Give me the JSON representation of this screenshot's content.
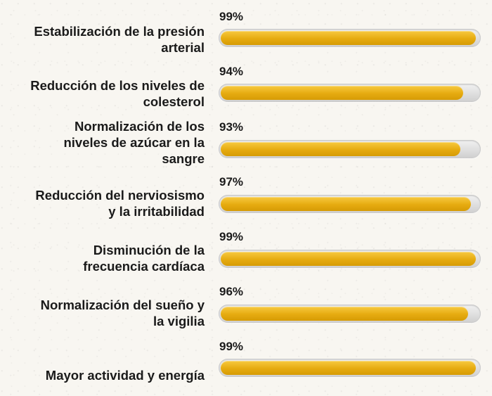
{
  "chart_data": {
    "type": "bar",
    "orientation": "horizontal",
    "categories": [
      "Estabilización de la presión arterial",
      "Reducción de los niveles de colesterol",
      "Normalización de los niveles de azúcar en la sangre",
      "Reducción del nerviosismo y la irritabilidad",
      "Disminución de la frecuencia cardíaca",
      "Normalización del sueño y la vigilia",
      "Mayor actividad y energía"
    ],
    "values": [
      99,
      94,
      93,
      97,
      99,
      96,
      99
    ],
    "value_labels": [
      "99%",
      "94%",
      "93%",
      "97%",
      "99%",
      "96%",
      "99%"
    ],
    "xlim": [
      0,
      100
    ],
    "colors": {
      "fill": "#e8b01a",
      "track": "#d9d9d9",
      "text": "#1a1a1a"
    }
  }
}
